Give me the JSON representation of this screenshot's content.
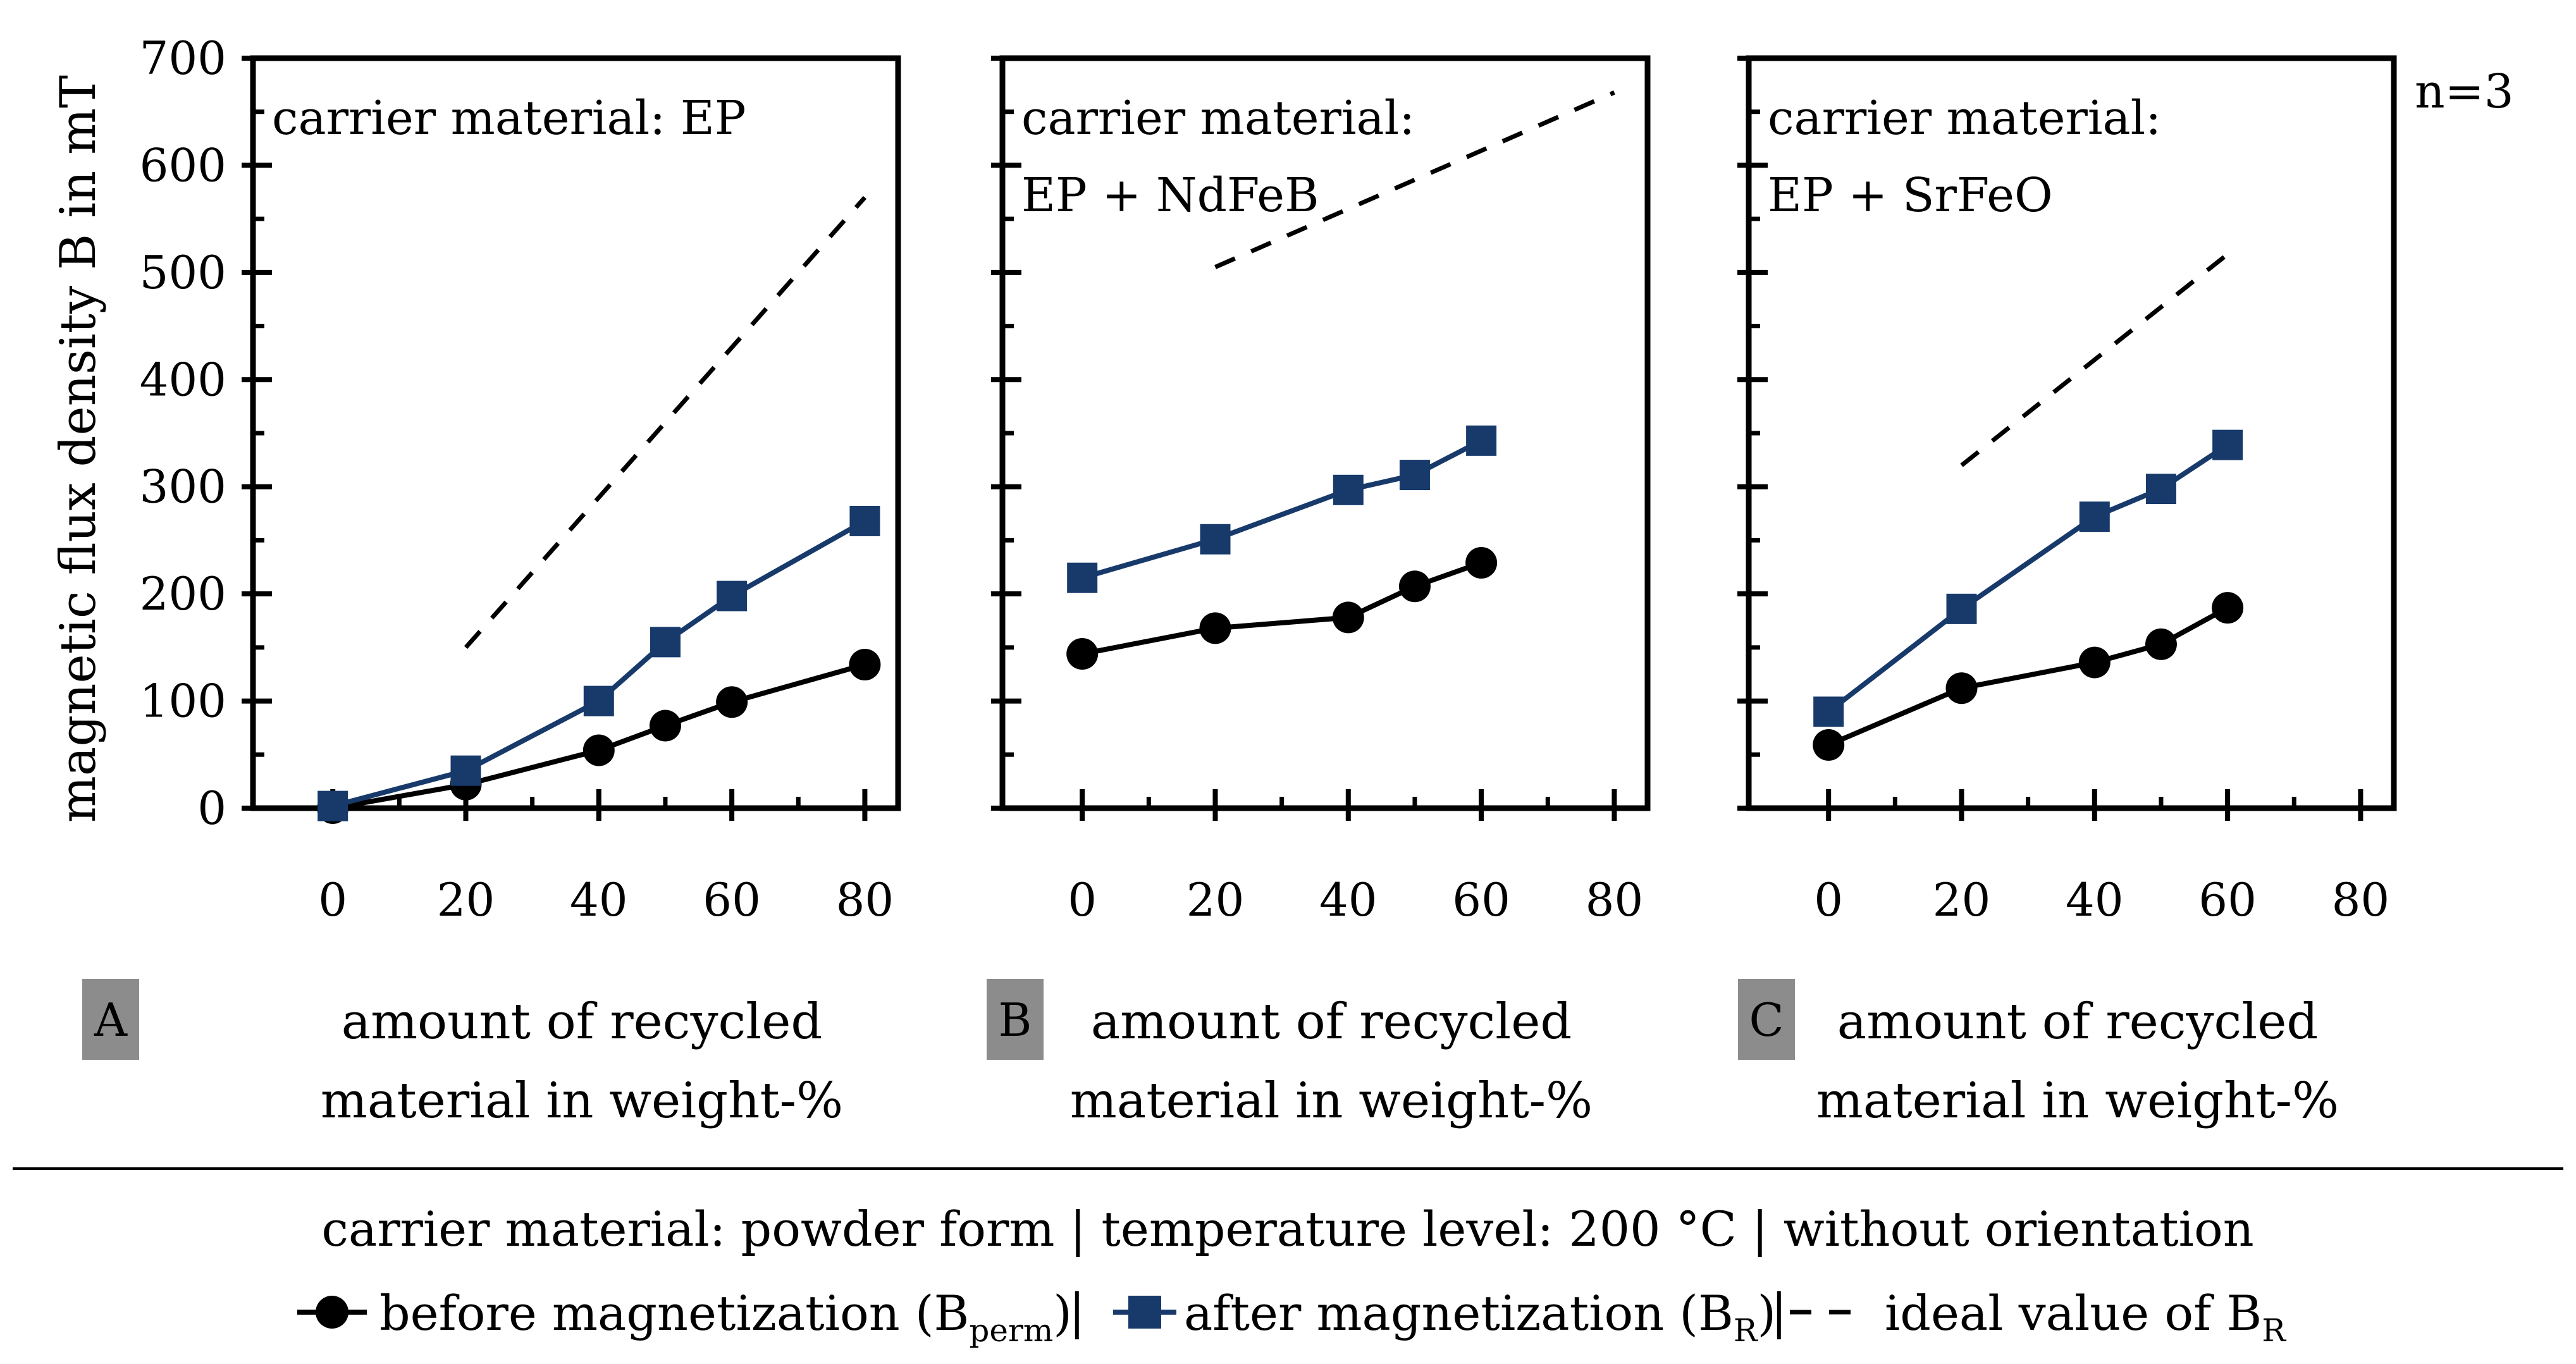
{
  "chart_data": [
    {
      "id": "A",
      "type": "line",
      "title_lines": [
        "carrier material: EP"
      ],
      "xlabel_lines": [
        "amount of recycled",
        "material in weight-%"
      ],
      "ylabel": "magnetic flux density B in mT",
      "xlim": [
        -12,
        85
      ],
      "ylim": [
        0,
        700
      ],
      "xticks": [
        0,
        20,
        40,
        60,
        80
      ],
      "yticks": [
        0,
        100,
        200,
        300,
        400,
        500,
        600,
        700
      ],
      "series": [
        {
          "name": "before magnetization (B_perm)",
          "marker": "circle",
          "color": "#000000",
          "x": [
            0,
            20,
            40,
            50,
            60,
            80
          ],
          "y": [
            0,
            22,
            54,
            77,
            99,
            134
          ]
        },
        {
          "name": "after magnetization (B_R)",
          "marker": "square",
          "color": "#173a6b",
          "x": [
            0,
            20,
            40,
            50,
            60,
            80
          ],
          "y": [
            2,
            35,
            100,
            155,
            198,
            268
          ]
        },
        {
          "name": "ideal value of B_R",
          "marker": "none",
          "style": "dashed",
          "color": "#000000",
          "x": [
            20,
            80
          ],
          "y": [
            150,
            570
          ]
        }
      ]
    },
    {
      "id": "B",
      "type": "line",
      "title_lines": [
        "carrier material:",
        "EP + NdFeB"
      ],
      "xlabel_lines": [
        "amount of recycled",
        "material in weight-%"
      ],
      "xlim": [
        -12,
        85
      ],
      "ylim": [
        0,
        700
      ],
      "xticks": [
        0,
        20,
        40,
        60,
        80
      ],
      "yticks": [
        0,
        100,
        200,
        300,
        400,
        500,
        600,
        700
      ],
      "series": [
        {
          "name": "before magnetization (B_perm)",
          "marker": "circle",
          "color": "#000000",
          "x": [
            0,
            20,
            40,
            50,
            60
          ],
          "y": [
            144,
            168,
            178,
            207,
            229
          ]
        },
        {
          "name": "after magnetization (B_R)",
          "marker": "square",
          "color": "#173a6b",
          "x": [
            0,
            20,
            40,
            50,
            60
          ],
          "y": [
            215,
            251,
            297,
            311,
            343
          ]
        },
        {
          "name": "ideal value of B_R",
          "marker": "none",
          "style": "dashed",
          "color": "#000000",
          "x": [
            20,
            80
          ],
          "y": [
            505,
            668
          ]
        }
      ]
    },
    {
      "id": "C",
      "type": "line",
      "title_lines": [
        "carrier material:",
        "EP + SrFeO"
      ],
      "xlabel_lines": [
        "amount of recycled",
        "material in weight-%"
      ],
      "xlim": [
        -12,
        85
      ],
      "ylim": [
        0,
        700
      ],
      "xticks": [
        0,
        20,
        40,
        60,
        80
      ],
      "yticks": [
        0,
        100,
        200,
        300,
        400,
        500,
        600,
        700
      ],
      "series": [
        {
          "name": "before magnetization (B_perm)",
          "marker": "circle",
          "color": "#000000",
          "x": [
            0,
            20,
            40,
            50,
            60
          ],
          "y": [
            59,
            112,
            136,
            153,
            187
          ]
        },
        {
          "name": "after magnetization (B_R)",
          "marker": "square",
          "color": "#173a6b",
          "x": [
            0,
            20,
            40,
            50,
            60
          ],
          "y": [
            90,
            186,
            272,
            298,
            339
          ]
        },
        {
          "name": "ideal value of B_R",
          "marker": "none",
          "style": "dashed",
          "color": "#000000",
          "x": [
            20,
            60
          ],
          "y": [
            320,
            517
          ]
        }
      ]
    }
  ],
  "sample_note": "n=3",
  "condition_line": "carrier material: powder form | temperature level: 200 °C | without orientation",
  "legend": {
    "before_main": "before magnetization (B",
    "before_sub": "perm",
    "before_close": ")",
    "after_main": "after magnetization (B",
    "after_sub": "R",
    "after_close": ")",
    "ideal_main": "ideal value of B",
    "ideal_sub": "R",
    "separator": "|"
  },
  "colors": {
    "before": "#000000",
    "after": "#173a6b",
    "badge": "#8c8c8c"
  }
}
